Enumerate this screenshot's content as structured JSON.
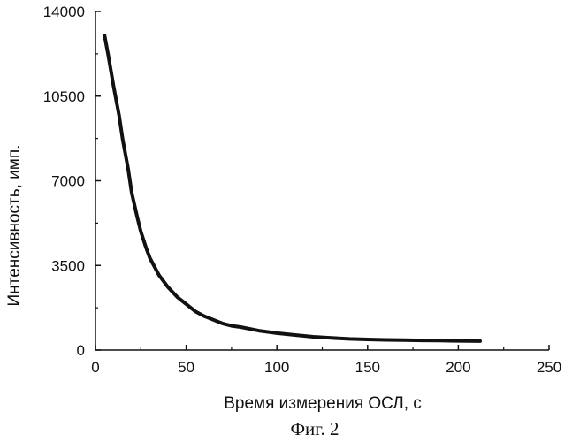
{
  "chart_data": {
    "type": "line",
    "xlabel": "Время измерения ОСЛ, с",
    "ylabel": "Интенсивность, имп.",
    "xlim": [
      0,
      250
    ],
    "ylim": [
      0,
      14000
    ],
    "xticks": [
      0,
      50,
      100,
      150,
      200,
      250
    ],
    "yticks": [
      0,
      3500,
      7000,
      10500,
      14000
    ],
    "grid": false,
    "legend": "none",
    "line_color": "#111111",
    "series": [
      {
        "x": [
          5,
          7,
          10,
          13,
          15,
          18,
          20,
          23,
          25,
          28,
          30,
          35,
          40,
          45,
          50,
          55,
          60,
          65,
          70,
          75,
          80,
          90,
          100,
          110,
          120,
          130,
          140,
          150,
          160,
          170,
          180,
          190,
          200,
          212
        ],
        "values": [
          13000,
          12200,
          10900,
          9700,
          8700,
          7500,
          6500,
          5500,
          4900,
          4200,
          3800,
          3100,
          2600,
          2200,
          1900,
          1600,
          1400,
          1250,
          1100,
          1000,
          950,
          800,
          700,
          620,
          550,
          500,
          460,
          440,
          420,
          410,
          400,
          390,
          380,
          370
        ]
      }
    ]
  },
  "caption": "Фиг. 2"
}
